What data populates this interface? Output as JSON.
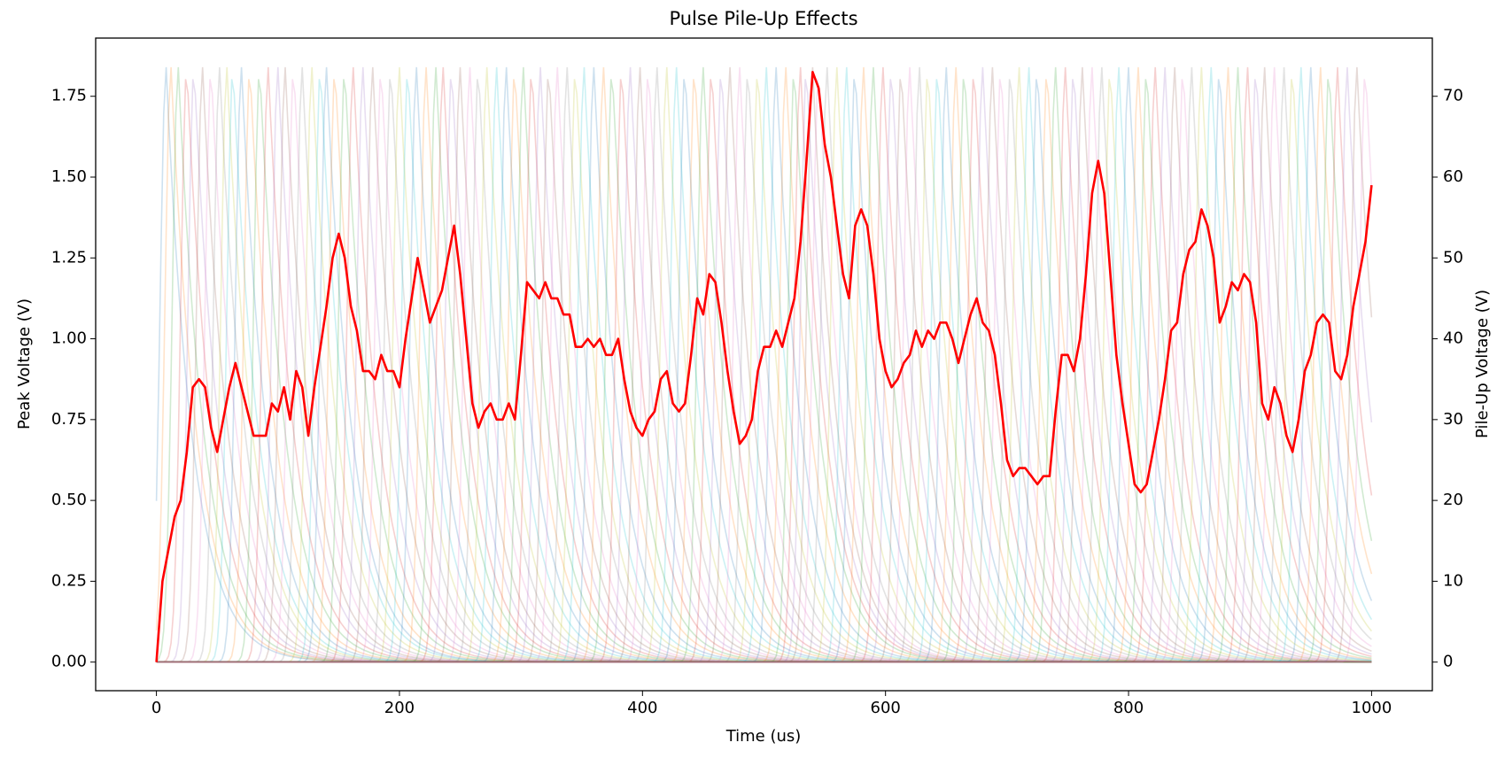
{
  "chart_data": {
    "type": "line",
    "title": "Pulse Pile-Up Effects",
    "x_label": "Time (us)",
    "y_label": "Peak Voltage (V)",
    "y2_label": "Pile-Up Voltage (V)",
    "xlim": [
      -50,
      1050
    ],
    "xticks": [
      0,
      200,
      400,
      600,
      800,
      1000
    ],
    "ylim": [
      -0.0885,
      1.93
    ],
    "yticks": [
      {
        "value": 0,
        "label": "0.00"
      },
      0.25,
      {
        "value": 0.5,
        "label": "0.50"
      },
      0.75,
      {
        "value": 1,
        "label": "1.00"
      },
      1.25,
      {
        "value": 1.5,
        "label": "1.50"
      },
      1.75
    ],
    "y2lim": [
      -3.54,
      77.2
    ],
    "y2ticks": [
      0,
      10,
      20,
      30,
      40,
      50,
      60,
      70
    ],
    "pulse_peak": 1.84,
    "pulse_colors": [
      "#1f77b4",
      "#ff7f0e",
      "#2ca02c",
      "#d62728",
      "#9467bd",
      "#8c564b",
      "#e377c2",
      "#7f7f7f",
      "#bcbd22",
      "#17becf"
    ],
    "pulse_times": [
      8,
      12,
      18,
      25,
      31,
      38,
      45,
      52,
      58,
      63,
      70,
      77,
      85,
      92,
      100,
      106,
      113,
      120,
      128,
      135,
      140,
      147,
      155,
      162,
      170,
      178,
      185,
      193,
      200,
      207,
      214,
      222,
      230,
      236,
      243,
      250,
      258,
      265,
      272,
      280,
      288,
      295,
      302,
      309,
      316,
      323,
      330,
      338,
      345,
      352,
      360,
      368,
      375,
      383,
      390,
      398,
      405,
      412,
      420,
      428,
      435,
      443,
      450,
      457,
      465,
      472,
      480,
      487,
      495,
      502,
      510,
      518,
      525,
      530,
      535,
      540,
      545,
      552,
      560,
      568,
      575,
      582,
      590,
      598,
      605,
      613,
      620,
      628,
      635,
      643,
      650,
      658,
      665,
      673,
      680,
      688,
      695,
      703,
      710,
      718,
      725,
      733,
      740,
      748,
      755,
      762,
      770,
      778,
      785,
      792,
      800,
      808,
      815,
      822,
      830,
      838,
      845,
      852,
      860,
      868,
      875,
      882,
      890,
      898,
      905,
      912,
      920,
      928,
      935,
      942,
      950,
      958,
      965,
      972,
      980,
      988,
      995
    ],
    "x": [
      0,
      5,
      10,
      15,
      20,
      25,
      30,
      35,
      40,
      45,
      50,
      55,
      60,
      65,
      70,
      75,
      80,
      85,
      90,
      95,
      100,
      105,
      110,
      115,
      120,
      125,
      130,
      135,
      140,
      145,
      150,
      155,
      160,
      165,
      170,
      175,
      180,
      185,
      190,
      195,
      200,
      205,
      210,
      215,
      220,
      225,
      230,
      235,
      240,
      245,
      250,
      255,
      260,
      265,
      270,
      275,
      280,
      285,
      290,
      295,
      300,
      305,
      310,
      315,
      320,
      325,
      330,
      335,
      340,
      345,
      350,
      355,
      360,
      365,
      370,
      375,
      380,
      385,
      390,
      395,
      400,
      405,
      410,
      415,
      420,
      425,
      430,
      435,
      440,
      445,
      450,
      455,
      460,
      465,
      470,
      475,
      480,
      485,
      490,
      495,
      500,
      505,
      510,
      515,
      520,
      525,
      530,
      535,
      540,
      545,
      550,
      555,
      560,
      565,
      570,
      575,
      580,
      585,
      590,
      595,
      600,
      605,
      610,
      615,
      620,
      625,
      630,
      635,
      640,
      645,
      650,
      655,
      660,
      665,
      670,
      675,
      680,
      685,
      690,
      695,
      700,
      705,
      710,
      715,
      720,
      725,
      730,
      735,
      740,
      745,
      750,
      755,
      760,
      765,
      770,
      775,
      780,
      785,
      790,
      795,
      800,
      805,
      810,
      815,
      820,
      825,
      830,
      835,
      840,
      845,
      850,
      855,
      860,
      865,
      870,
      875,
      880,
      885,
      890,
      895,
      900,
      905,
      910,
      915,
      920,
      925,
      930,
      935,
      940,
      945,
      950,
      955,
      960,
      965,
      970,
      975,
      980,
      985,
      990,
      995,
      1000
    ],
    "series": [
      {
        "color": "#ff0000",
        "axis": "y2",
        "values": [
          0,
          10,
          14,
          18,
          20,
          26,
          34,
          35,
          34,
          29,
          26,
          30,
          34,
          37,
          34,
          31,
          28,
          28,
          28,
          32,
          31,
          34,
          30,
          36,
          34,
          28,
          34,
          39,
          44,
          50,
          53,
          50,
          44,
          41,
          36,
          36,
          35,
          38,
          36,
          36,
          34,
          40,
          45,
          50,
          46,
          42,
          44,
          46,
          50,
          54,
          48,
          40,
          32,
          29,
          31,
          32,
          30,
          30,
          32,
          30,
          38,
          47,
          46,
          45,
          47,
          45,
          45,
          43,
          43,
          39,
          39,
          40,
          39,
          40,
          38,
          38,
          40,
          35,
          31,
          29,
          28,
          30,
          31,
          35,
          36,
          32,
          31,
          32,
          38,
          45,
          43,
          48,
          47,
          42,
          36,
          31,
          27,
          28,
          30,
          36,
          39,
          39,
          41,
          39,
          42,
          45,
          52,
          62,
          73,
          71,
          64,
          60,
          54,
          48,
          45,
          54,
          56,
          54,
          48,
          40,
          36,
          34,
          35,
          37,
          38,
          41,
          39,
          41,
          40,
          42,
          42,
          40,
          37,
          40,
          43,
          45,
          42,
          41,
          38,
          32,
          25,
          23,
          24,
          24,
          23,
          22,
          23,
          23,
          31,
          38,
          38,
          36,
          40,
          48,
          58,
          62,
          58,
          48,
          38,
          32,
          27,
          22,
          21,
          22,
          26,
          30,
          35,
          41,
          42,
          48,
          51,
          52,
          56,
          54,
          50,
          42,
          44,
          47,
          46,
          48,
          47,
          42,
          32,
          30,
          34,
          32,
          28,
          26,
          30,
          36,
          38,
          42,
          43,
          42,
          36,
          35,
          38,
          44,
          48,
          52,
          59
        ]
      }
    ]
  }
}
